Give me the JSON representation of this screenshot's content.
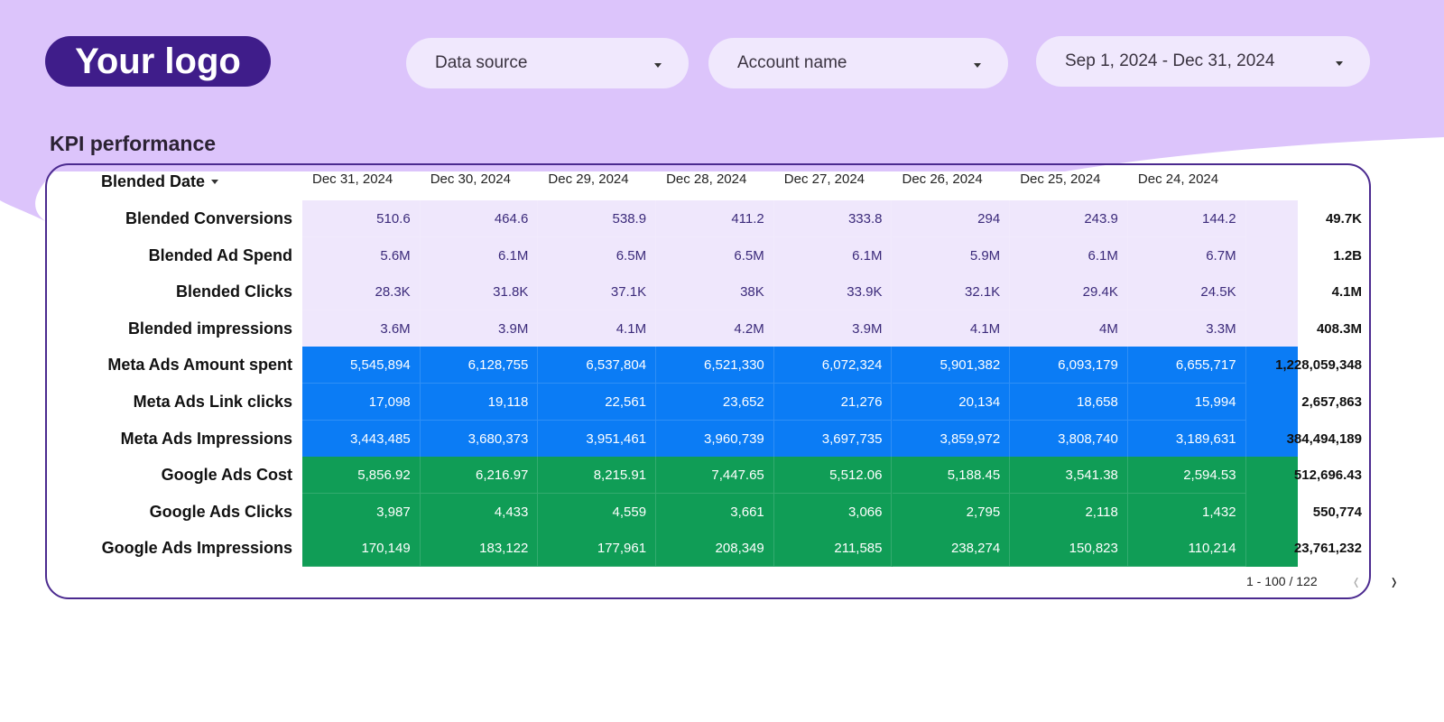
{
  "header": {
    "logo": "Your logo",
    "filters": [
      "Data source",
      "Account name",
      "Sep 1, 2024 - Dec 31, 2024"
    ]
  },
  "section_title": "KPI performance",
  "table": {
    "dimension": "Blended Date",
    "columns": [
      "Dec 31, 2024",
      "Dec 30, 2024",
      "Dec 29, 2024",
      "Dec 28, 2024",
      "Dec 27, 2024",
      "Dec 26, 2024",
      "Dec 25, 2024",
      "Dec 24, 2024"
    ],
    "rows": [
      {
        "label": "Blended Conversions",
        "color": "#efe7fc",
        "text_color": "#3b2a7a",
        "cells": [
          "510.6",
          "464.6",
          "538.9",
          "411.2",
          "333.8",
          "294",
          "243.9",
          "144.2"
        ],
        "total": "49.7K"
      },
      {
        "label": "Blended Ad Spend",
        "color": "#efe7fc",
        "text_color": "#3b2a7a",
        "cells": [
          "5.6M",
          "6.1M",
          "6.5M",
          "6.5M",
          "6.1M",
          "5.9M",
          "6.1M",
          "6.7M"
        ],
        "total": "1.2B"
      },
      {
        "label": "Blended Clicks",
        "color": "#efe7fc",
        "text_color": "#3b2a7a",
        "cells": [
          "28.3K",
          "31.8K",
          "37.1K",
          "38K",
          "33.9K",
          "32.1K",
          "29.4K",
          "24.5K"
        ],
        "total": "4.1M"
      },
      {
        "label": "Blended impressions",
        "color": "#efe7fc",
        "text_color": "#3b2a7a",
        "cells": [
          "3.6M",
          "3.9M",
          "4.1M",
          "4.2M",
          "3.9M",
          "4.1M",
          "4M",
          "3.3M"
        ],
        "total": "408.3M"
      },
      {
        "label": "Meta Ads Amount spent",
        "color": "#0b7cf5",
        "text_color": "#ffffff",
        "cells": [
          "5,545,894",
          "6,128,755",
          "6,537,804",
          "6,521,330",
          "6,072,324",
          "5,901,382",
          "6,093,179",
          "6,655,717"
        ],
        "total": "1,228,059,348"
      },
      {
        "label": "Meta Ads Link clicks",
        "color": "#0b7cf5",
        "text_color": "#ffffff",
        "cells": [
          "17,098",
          "19,118",
          "22,561",
          "23,652",
          "21,276",
          "20,134",
          "18,658",
          "15,994"
        ],
        "total": "2,657,863"
      },
      {
        "label": "Meta Ads Impressions",
        "color": "#0b7cf5",
        "text_color": "#ffffff",
        "cells": [
          "3,443,485",
          "3,680,373",
          "3,951,461",
          "3,960,739",
          "3,697,735",
          "3,859,972",
          "3,808,740",
          "3,189,631"
        ],
        "total": "384,494,189"
      },
      {
        "label": "Google Ads Cost",
        "color": "#109d56",
        "text_color": "#ffffff",
        "cells": [
          "5,856.92",
          "6,216.97",
          "8,215.91",
          "7,447.65",
          "5,512.06",
          "5,188.45",
          "3,541.38",
          "2,594.53"
        ],
        "total": "512,696.43"
      },
      {
        "label": "Google Ads Clicks",
        "color": "#109d56",
        "text_color": "#ffffff",
        "cells": [
          "3,987",
          "4,433",
          "4,559",
          "3,661",
          "3,066",
          "2,795",
          "2,118",
          "1,432"
        ],
        "total": "550,774"
      },
      {
        "label": "Google Ads Impressions",
        "color": "#109d56",
        "text_color": "#ffffff",
        "cells": [
          "170,149",
          "183,122",
          "177,961",
          "208,349",
          "211,585",
          "238,274",
          "150,823",
          "110,214"
        ],
        "total": "23,761,232"
      }
    ]
  },
  "pagination": "1 - 100 / 122"
}
